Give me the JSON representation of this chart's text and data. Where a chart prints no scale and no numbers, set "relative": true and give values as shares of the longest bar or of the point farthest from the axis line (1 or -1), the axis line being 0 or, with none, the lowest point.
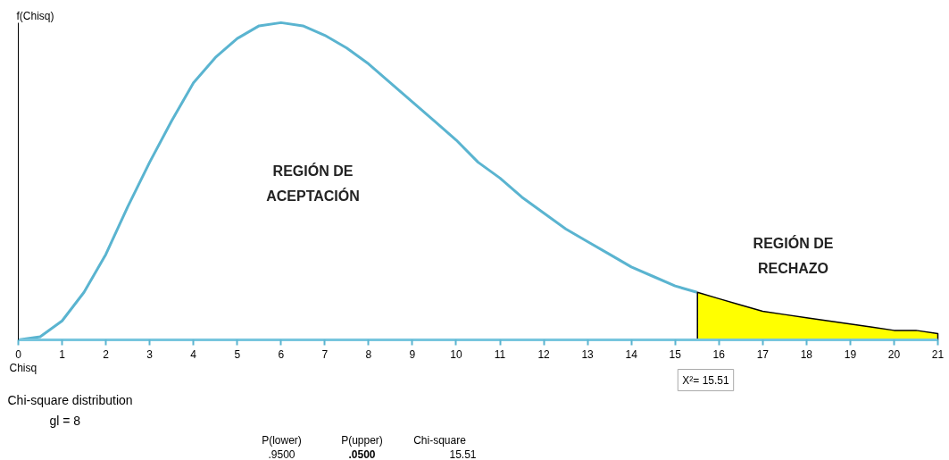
{
  "chart_data": {
    "type": "line",
    "relative": true,
    "xlabel": "Chisq",
    "ylabel": "f(Chisq)",
    "xlim": [
      0,
      21
    ],
    "xticks": [
      0,
      1,
      2,
      3,
      4,
      5,
      6,
      7,
      8,
      9,
      10,
      11,
      12,
      13,
      14,
      15,
      16,
      17,
      18,
      19,
      20,
      21
    ],
    "series": [
      {
        "color": "#5ab4d0",
        "x": [
          0,
          0.5,
          1,
          1.5,
          2,
          2.5,
          3,
          3.5,
          4,
          4.5,
          5,
          5.5,
          6,
          6.5,
          7,
          7.5,
          8,
          8.5,
          9,
          9.5,
          10,
          10.5,
          11,
          11.5,
          12,
          12.5,
          13,
          13.5,
          14,
          14.5,
          15,
          15.5
        ],
        "values": [
          0,
          0.01,
          0.06,
          0.15,
          0.27,
          0.42,
          0.56,
          0.69,
          0.81,
          0.89,
          0.95,
          0.99,
          1,
          0.99,
          0.96,
          0.92,
          0.87,
          0.81,
          0.75,
          0.69,
          0.63,
          0.56,
          0.51,
          0.45,
          0.4,
          0.35,
          0.31,
          0.27,
          0.23,
          0.2,
          0.17,
          0.15
        ]
      },
      {
        "type": "area",
        "color": "#ffff00",
        "x": [
          15.51,
          16,
          16.5,
          17,
          17.5,
          18,
          18.5,
          19,
          19.5,
          20,
          20.5,
          21
        ],
        "values": [
          0.15,
          0.13,
          0.11,
          0.09,
          0.08,
          0.07,
          0.06,
          0.05,
          0.04,
          0.03,
          0.03,
          0.02
        ]
      }
    ],
    "annotations": [
      "REGIÓN DE\nACEPTACIÓN",
      "REGIÓN DE\nRECHAZO",
      "X²= 15.51",
      "Chi-square distribution",
      "gl =  8",
      "P(lower)",
      ".9500",
      "P(upper)",
      ".0500",
      "Chi-square",
      "15.51"
    ]
  }
}
